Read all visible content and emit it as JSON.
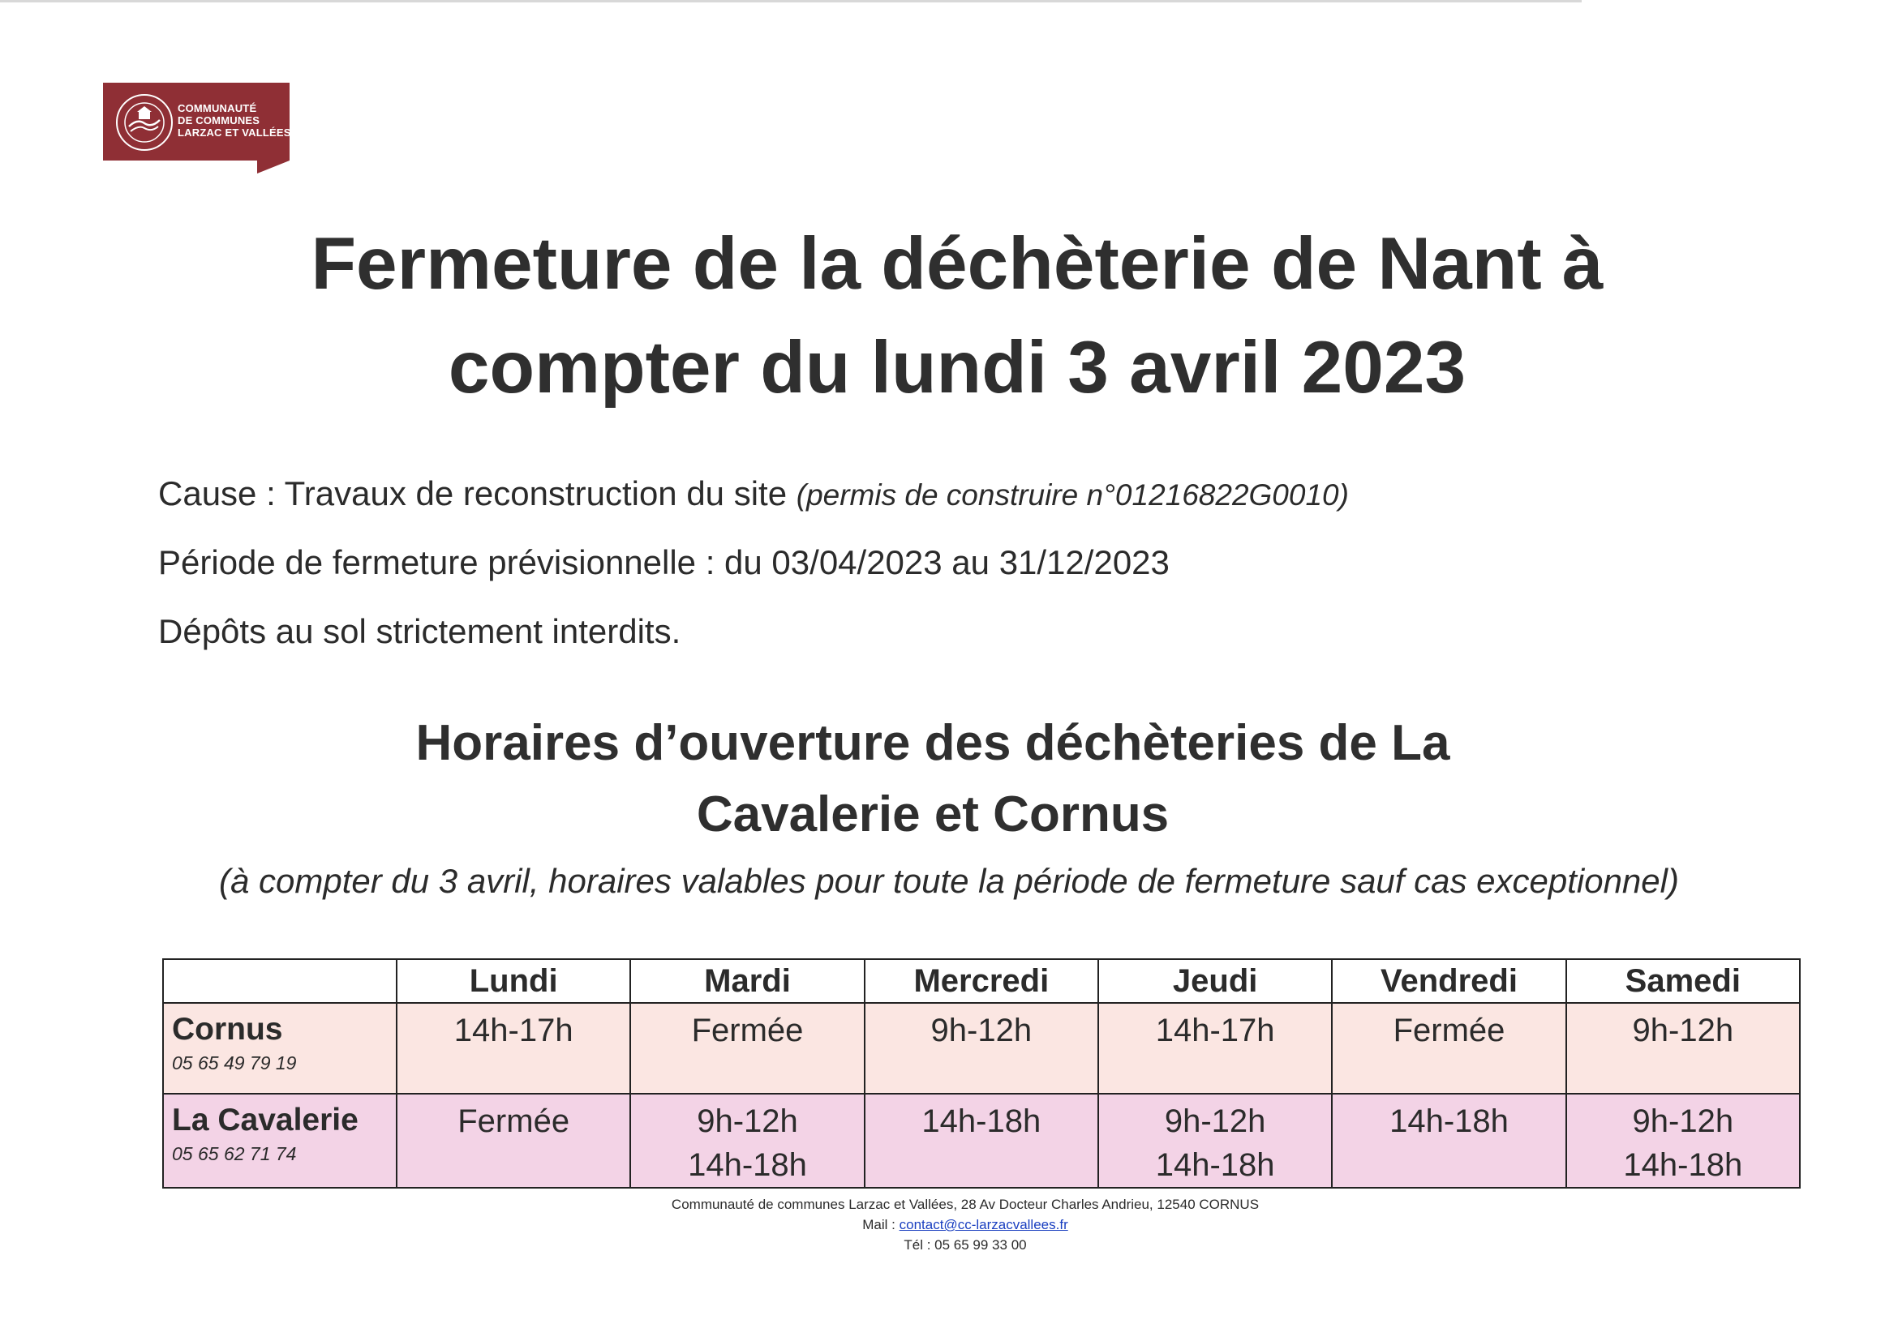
{
  "logo": {
    "line1": "COMMUNAUTÉ",
    "line2": "DE COMMUNES",
    "line3": "LARZAC ET VALLÉES",
    "color": "#8f2f35"
  },
  "title": {
    "line1": "Fermeture de la déchèterie de Nant à",
    "line2": "compter du lundi 3 avril 2023"
  },
  "info": {
    "cause": "Cause : Travaux de reconstruction du site",
    "permit": "(permis de construire n°01216822G0010)",
    "period": "Période de fermeture prévisionnelle : du 03/04/2023 au 31/12/2023",
    "deposits": "Dépôts au sol strictement interdits."
  },
  "subtitle": {
    "line1": "Horaires d’ouverture des déchèteries de La",
    "line2": "Cavalerie et Cornus"
  },
  "note": "(à compter du 3 avril, horaires valables pour toute la période de fermeture sauf cas exceptionnel)",
  "table": {
    "days": [
      "Lundi",
      "Mardi",
      "Mercredi",
      "Jeudi",
      "Vendredi",
      "Samedi"
    ],
    "rows": [
      {
        "site": "Cornus",
        "phone": "05 65 49 79 19",
        "hours": [
          [
            "14h-17h"
          ],
          [
            "Fermée"
          ],
          [
            "9h-12h"
          ],
          [
            "14h-17h"
          ],
          [
            "Fermée"
          ],
          [
            "9h-12h"
          ]
        ]
      },
      {
        "site": "La Cavalerie",
        "phone": "05 65 62 71 74",
        "hours": [
          [
            "Fermée"
          ],
          [
            "9h-12h",
            "14h-18h"
          ],
          [
            "14h-18h"
          ],
          [
            "9h-12h",
            "14h-18h"
          ],
          [
            "14h-18h"
          ],
          [
            "9h-12h",
            "14h-18h"
          ]
        ]
      }
    ],
    "colors": {
      "cornus_row": "#fbe6e2",
      "cavalerie_row": "#f3d3e6"
    }
  },
  "footer": {
    "address": "Communauté de communes Larzac et Vallées, 28 Av Docteur Charles Andrieu, 12540 CORNUS",
    "mail_label": "Mail :",
    "mail": "contact@cc-larzacvallees.fr",
    "tel": "Tél : 05 65 99 33 00"
  }
}
